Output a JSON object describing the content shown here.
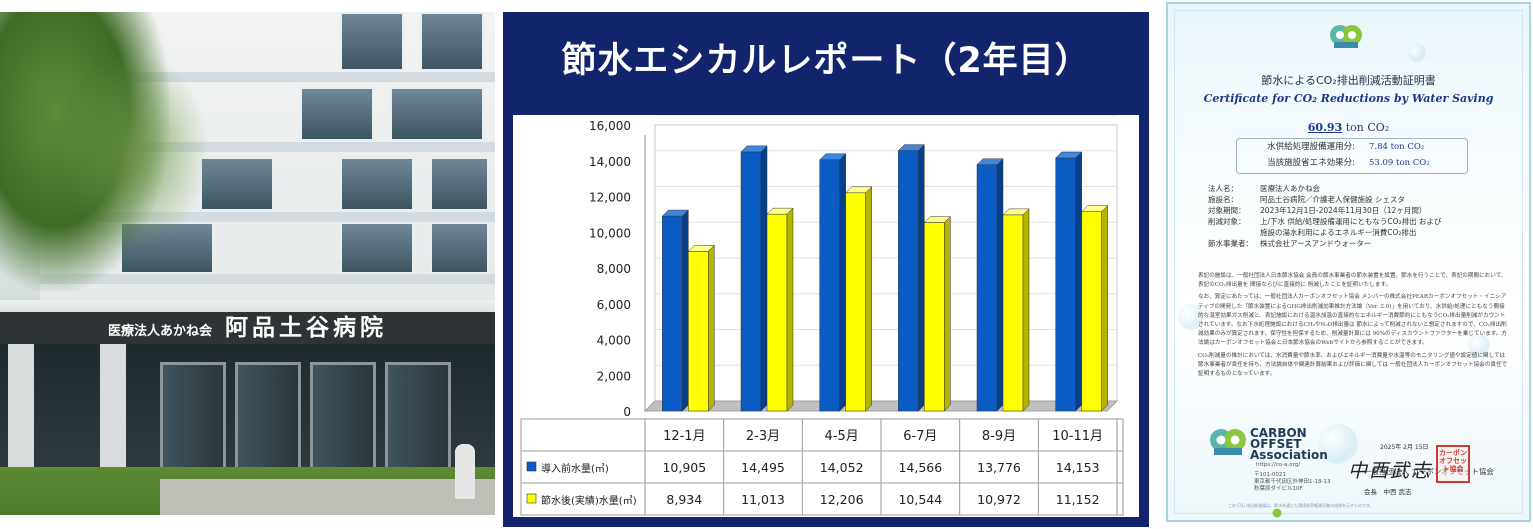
{
  "photo": {
    "sign_small": "医療法人あかね会",
    "sign_big": "阿品土谷病院"
  },
  "chart_panel": {
    "title": "節水エシカルレポート（2年目）"
  },
  "colors": {
    "navy": "#12246b",
    "series_blue": "#0a5bc4",
    "series_yellow": "#ffff00",
    "accent_blue": "#1d3a8a",
    "stamp_red": "#cf3b2e"
  },
  "chart_data": {
    "type": "bar",
    "title": "",
    "xlabel": "",
    "ylabel": "",
    "ylim": [
      0,
      16000
    ],
    "yticks": [
      0,
      2000,
      4000,
      6000,
      8000,
      10000,
      12000,
      14000,
      16000
    ],
    "ytick_labels": [
      "0",
      "2,000",
      "4,000",
      "6,000",
      "8,000",
      "10,000",
      "12,000",
      "14,000",
      "16,000"
    ],
    "categories": [
      "12-1月",
      "2-3月",
      "4-5月",
      "6-7月",
      "8-9月",
      "10-11月"
    ],
    "legend_position": "table-below",
    "series": [
      {
        "name": "導入前水量(㎥)",
        "color": "#0a5bc4",
        "values": [
          10905,
          14495,
          14052,
          14566,
          13776,
          14153
        ],
        "value_labels": [
          "10,905",
          "14,495",
          "14,052",
          "14,566",
          "13,776",
          "14,153"
        ]
      },
      {
        "name": "節水後(実績)水量(㎥)",
        "color": "#ffff00",
        "values": [
          8934,
          11013,
          12206,
          10544,
          10972,
          11152
        ],
        "value_labels": [
          "8,934",
          "11,013",
          "12,206",
          "10,544",
          "10,972",
          "11,152"
        ]
      }
    ]
  },
  "certificate": {
    "title_jp": "節水によるCO₂排出削減活動証明書",
    "title_en": "Certificate for CO₂ Reductions by Water Saving",
    "total_value": "60.93",
    "total_unit": "ton CO₂",
    "breakdown": [
      {
        "label": "水供給処理設備運用分:",
        "value": "7.84 ton CO₂"
      },
      {
        "label": "当該施設省エネ効果分:",
        "value": "53.09 ton CO₂"
      }
    ],
    "details": [
      {
        "key": "法人名：",
        "value": "医療法人あかね会"
      },
      {
        "key": "施設名：",
        "value": "阿品土谷病院／介護老人保健施設 シェスタ"
      },
      {
        "key": "対象期間：",
        "value": "2023年12月1日-2024年11月30日（12ヶ月間）"
      },
      {
        "key": "削減対象：",
        "value": "上/下水 供給/処理設備運用にともなうCO₂排出 および"
      },
      {
        "key": "",
        "value": "施設の湯水利用によるエネルギー消費CO₂排出"
      },
      {
        "key": "節水事業者：",
        "value": "株式会社アースアンドウォーター"
      }
    ],
    "body_paragraphs": [
      "表記の施設は、一般社団法人日本節水協会 会員の節水事業者の節水装置を設置、節水を行うことで、表記の期間において、表記のCO₂排出量を 間接ならびに直接的に 削減したことを証明いたします。",
      "なお、算定にあたっては、一般社団法人カーボンオフセット協会 メンバーの株式会社PEARカーボンオフセット・イニシアティブの開発した「節水装置によるGHG排出削減効果推計方法論（Ver. 2.0)」を用いており、水供給/処理にともなう間接的な温室効果ガス削減と、表記施設における温水加温の直接的なエネルギー消費節約にともなうCO₂排出量削減がカウントされています。なお下水処理施設におけるCH₄やN₂O排出量は 節水によって削減されないと想定されますので、CO₂排出削減効果のみが算定されます。保守性を担保するため、削減量計算には 90%のディスカウントファクターを乗じています。方法論はカーボンオフセット協会と日本節水協会のWebサイトから参照することができます。",
      "CO₂削減量の推計においては、水消費量や節水率、およびエネルギー消費量や水温等のモニタリング値や設定値に関しては節水事業者が責任を持ち、方法論自体や関連計算結果および評価に関しては 一般社団法人カーボンオフセット協会の責任で証明するものとなっています。"
    ],
    "issue_date": "2025年 2月 15日",
    "issuer_org": "一般社団法人 カーボンオフセット協会",
    "org_logo_text": "CARBON\nOFFSET\nAssociation",
    "org_logo_line1": "CARBON",
    "org_logo_line2": "OFFSET",
    "org_logo_line3": "Association",
    "org_url": "https://co-a.org/",
    "org_address_line1": "〒101-0021",
    "org_address_line2": "東京都千代田区外神田1-18-13",
    "org_address_line3": "秋葉原ダイビル10F",
    "signature": "中西武志",
    "signer": "会長　中西 武志",
    "stamp_text": "カーボンオフセット協会",
    "footnote": "この CO₂ 排出削減量は、節水を通じた環境負荷軽減活動の成果を示すものです。"
  }
}
